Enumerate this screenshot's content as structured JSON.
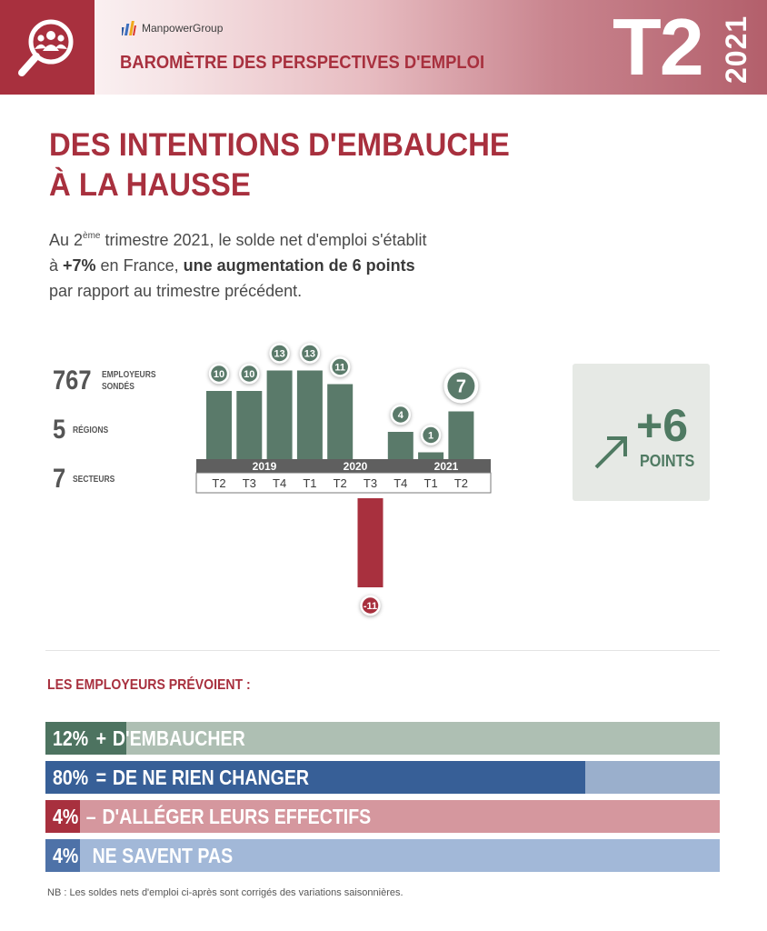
{
  "header": {
    "brand": "ManpowerGroup",
    "title": "BAROMÈTRE DES PERSPECTIVES D'EMPLOI",
    "quarter": "T2",
    "year": "2021",
    "accent_color": "#a8303e",
    "logo_icon": "magnifier-people-icon"
  },
  "headline": {
    "line1": "DES INTENTIONS D'EMBAUCHE",
    "line2": "À LA HAUSSE"
  },
  "intro": {
    "p1": "Au 2",
    "sup": "ème",
    "p2": " trimestre 2021, le solde net d'emploi s'établit",
    "p3": "à ",
    "bold1": "+7%",
    "p4": " en France, ",
    "bold2": "une augmentation de 6 points",
    "p5": "par rapport au trimestre précédent."
  },
  "stats": [
    {
      "value": "767",
      "label": "EMPLOYEURS SONDÉS"
    },
    {
      "value": "5",
      "label": "RÉGIONS"
    },
    {
      "value": "7",
      "label": "SECTEURS"
    }
  ],
  "change": {
    "value": "+6",
    "label": "POINTS",
    "icon": "arrow-up-right-icon"
  },
  "chart_data": {
    "type": "bar",
    "title": "",
    "categories": [
      "T2",
      "T3",
      "T4",
      "T1",
      "T2",
      "T3",
      "T4",
      "T1",
      "T2"
    ],
    "values": [
      10,
      10,
      13,
      13,
      11,
      -11,
      4,
      1,
      7
    ],
    "year_groups": [
      {
        "label": "2019",
        "categories": [
          "T2",
          "T3",
          "T4"
        ]
      },
      {
        "label": "2020",
        "categories": [
          "T1",
          "T2",
          "T3",
          "T4"
        ]
      },
      {
        "label": "2021",
        "categories": [
          "T1",
          "T2"
        ]
      }
    ],
    "highlight_index": 8,
    "colors": {
      "positive": "#5a7a6a",
      "negative": "#a8303e",
      "axis": "#5f5f5f"
    },
    "xlabel": "",
    "ylabel": ""
  },
  "outlook": {
    "title": "LES EMPLOYEURS PRÉVOIENT :",
    "items": [
      {
        "percent": "12%",
        "sign": "+",
        "text": "D'EMBAUCHER",
        "value": 12,
        "color_main": "#4d7360",
        "color_bg": "#aebfb3"
      },
      {
        "percent": "80%",
        "sign": "=",
        "text": "DE NE RIEN CHANGER",
        "value": 80,
        "color_main": "#375f97",
        "color_bg": "#9aafcc"
      },
      {
        "percent": "4%",
        "sign": "–",
        "text": "D'ALLÉGER LEURS EFFECTIFS",
        "value": 4,
        "color_main": "#a8303e",
        "color_bg": "#d5979e"
      },
      {
        "percent": "4%",
        "sign": "",
        "text": "NE SAVENT PAS",
        "value": 4,
        "color_main": "#4e72a8",
        "color_bg": "#a2b8d8"
      }
    ]
  },
  "footnote": "NB : Les soldes nets d'emploi ci-après sont corrigés des variations saisonnières."
}
